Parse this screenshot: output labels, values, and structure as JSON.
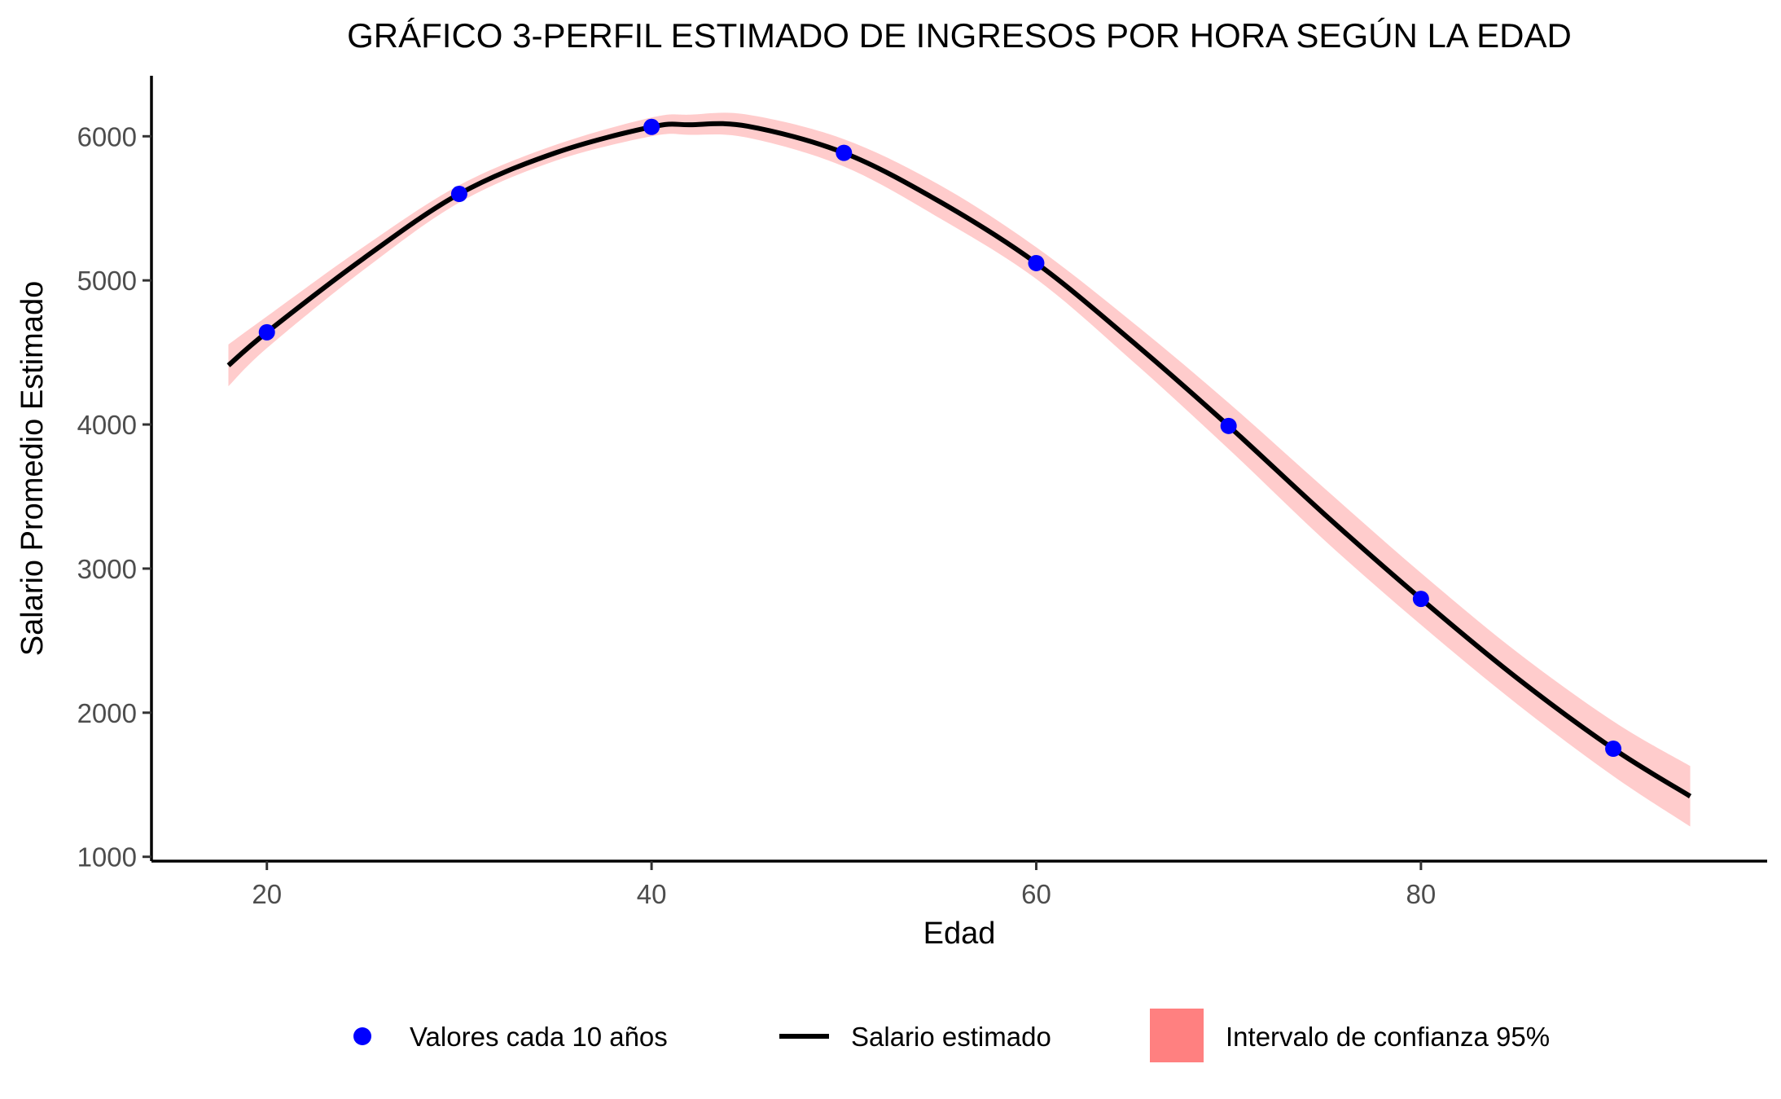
{
  "chart_data": {
    "type": "line",
    "title": "GRÁFICO 3-PERFIL ESTIMADO DE INGRESOS POR HORA SEGÚN LA EDAD",
    "xlabel": "Edad",
    "ylabel": "Salario Promedio Estimado",
    "xlim": [
      14,
      98
    ],
    "ylim": [
      970,
      6420
    ],
    "x_ticks": [
      20,
      40,
      60,
      80
    ],
    "y_ticks": [
      1000,
      2000,
      3000,
      4000,
      5000,
      6000
    ],
    "grid": false,
    "legend_position": "bottom",
    "colors": {
      "points": "#0000ff",
      "line": "#000000",
      "band": "#ff8080",
      "axis": "#000000",
      "tick_label": "#4d4d4d"
    },
    "series": [
      {
        "name": "Valores cada 10 años",
        "type": "scatter",
        "x": [
          20,
          30,
          40,
          50,
          60,
          70,
          80,
          90
        ],
        "y": [
          4640,
          5600,
          6065,
          5885,
          5120,
          3990,
          2790,
          1750
        ]
      },
      {
        "name": "Salario estimado",
        "type": "line",
        "x": [
          18,
          20,
          25,
          30,
          35,
          40,
          42,
          45,
          50,
          55,
          60,
          65,
          70,
          75,
          80,
          85,
          90,
          94
        ],
        "y": [
          4410,
          4640,
          5150,
          5600,
          5885,
          6065,
          6080,
          6070,
          5885,
          5545,
          5120,
          4575,
          3990,
          3375,
          2790,
          2240,
          1750,
          1420
        ]
      },
      {
        "name": "Intervalo de confianza 95%",
        "type": "band",
        "x": [
          18,
          20,
          25,
          30,
          35,
          40,
          42,
          45,
          50,
          55,
          60,
          65,
          70,
          75,
          80,
          85,
          90,
          94
        ],
        "lower": [
          4265,
          4530,
          5070,
          5540,
          5830,
          6000,
          6010,
          5990,
          5790,
          5430,
          5010,
          4440,
          3830,
          3195,
          2610,
          2060,
          1560,
          1210
        ],
        "upper": [
          4555,
          4750,
          5230,
          5660,
          5940,
          6130,
          6150,
          6150,
          5980,
          5660,
          5230,
          4710,
          4150,
          3555,
          2970,
          2420,
          1940,
          1630
        ]
      }
    ]
  }
}
